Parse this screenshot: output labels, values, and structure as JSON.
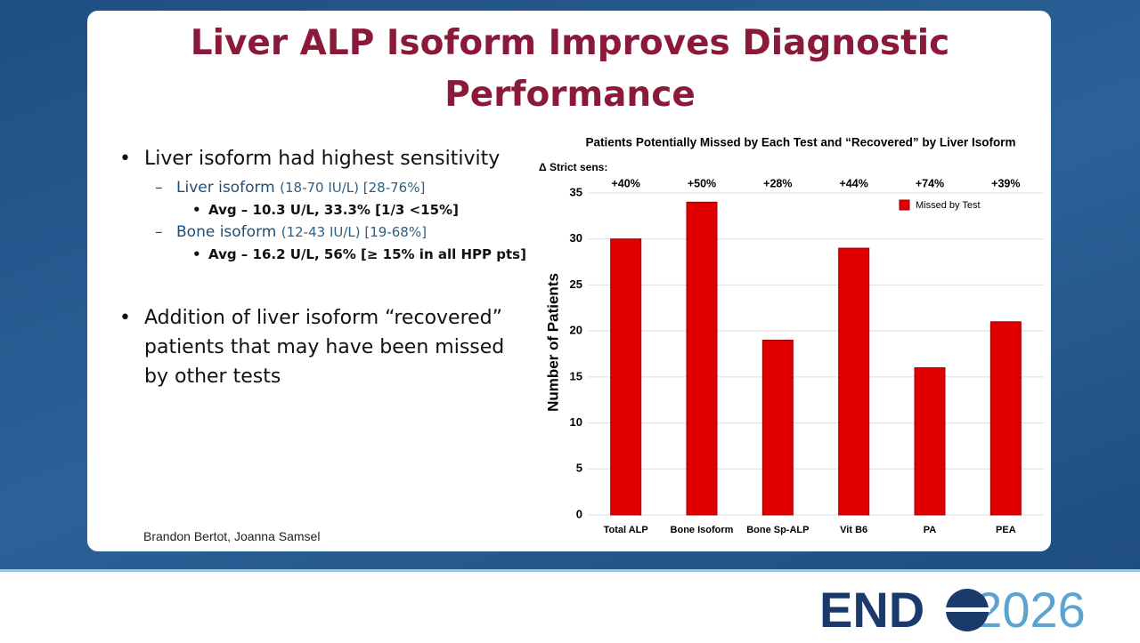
{
  "slide": {
    "title": "Liver ALP Isoform Improves Diagnostic Performance",
    "bullets": [
      {
        "text": "Liver isoform had highest sensitivity",
        "subs": [
          {
            "label": "Liver isoform",
            "range": "(18-70 IU/L) [28-76%]",
            "detail": "Avg – 10.3 U/L, 33.3% [1/3 <15%]"
          },
          {
            "label": "Bone isoform",
            "range": " (12-43 IU/L) [19-68%]",
            "detail": "Avg – 16.2 U/L, 56% [≥ 15% in all HPP pts]"
          }
        ]
      },
      {
        "text": "Addition of liver isoform “recovered” patients that may have been missed by other tests"
      }
    ],
    "authors": "Brandon Bertot, Joanna Samsel"
  },
  "footer": {
    "logo_bold": "END",
    "logo_light": "2026"
  },
  "chart_data": {
    "type": "bar",
    "title": "Patients Potentially Missed by Each Test and “Recovered” by Liver Isoform",
    "y_label": "Number of Patients",
    "annotation_title": "Δ Strict sens:",
    "annotations": [
      "+40%",
      "+50%",
      "+28%",
      "+44%",
      "+74%",
      "+39%"
    ],
    "categories": [
      "Total ALP",
      "Bone Isoform",
      "Bone Sp-ALP",
      "Vit B6",
      "PA",
      "PEA"
    ],
    "series": [
      {
        "name": "Missed by Test",
        "color": "#e00000",
        "values": [
          30,
          34,
          19,
          29,
          16,
          21
        ]
      }
    ],
    "ylim": [
      0,
      35
    ],
    "yticks": [
      0,
      5,
      10,
      15,
      20,
      25,
      30,
      35
    ],
    "grid": true,
    "legend": "top-right"
  }
}
